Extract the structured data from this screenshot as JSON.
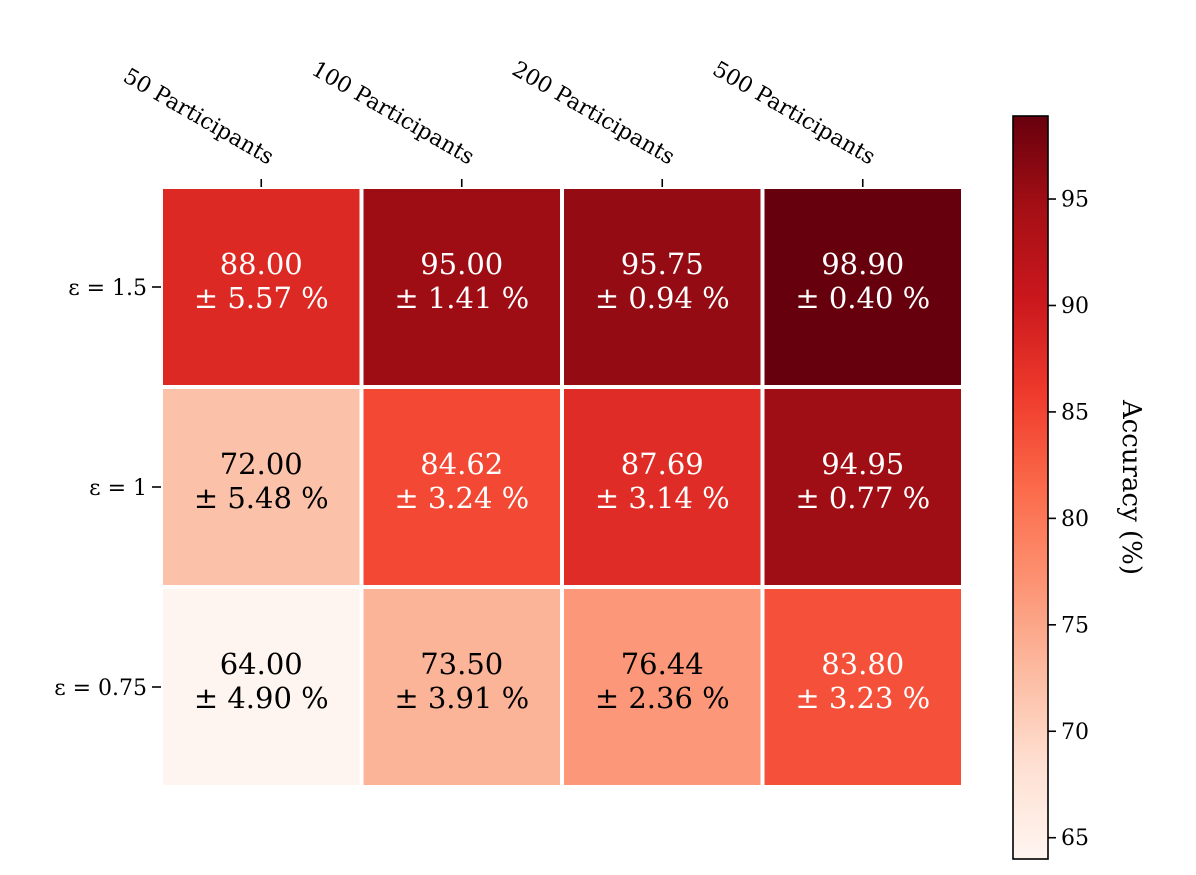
{
  "chart_data": {
    "type": "heatmap",
    "title": "",
    "columns": [
      "50 Participants",
      "100 Participants",
      "200 Participants",
      "500 Participants"
    ],
    "rows": [
      "ε = 1.5",
      "ε = 1",
      "ε = 0.75"
    ],
    "values": [
      [
        88.0,
        95.0,
        95.75,
        98.9
      ],
      [
        72.0,
        84.62,
        87.69,
        94.95
      ],
      [
        64.0,
        73.5,
        76.44,
        83.8
      ]
    ],
    "std": [
      [
        5.57,
        1.41,
        0.94,
        0.4
      ],
      [
        5.48,
        3.24,
        3.14,
        0.77
      ],
      [
        4.9,
        3.91,
        2.36,
        3.23
      ]
    ],
    "cell_labels": [
      [
        [
          "88.00",
          "± 5.57 %"
        ],
        [
          "95.00",
          "± 1.41 %"
        ],
        [
          "95.75",
          "± 0.94 %"
        ],
        [
          "98.90",
          "± 0.40 %"
        ]
      ],
      [
        [
          "72.00",
          "± 5.48 %"
        ],
        [
          "84.62",
          "± 3.24 %"
        ],
        [
          "87.69",
          "± 3.14 %"
        ],
        [
          "94.95",
          "± 0.77 %"
        ]
      ],
      [
        [
          "64.00",
          "± 4.90 %"
        ],
        [
          "73.50",
          "± 3.91 %"
        ],
        [
          "76.44",
          "± 2.36 %"
        ],
        [
          "83.80",
          "± 3.23 %"
        ]
      ]
    ],
    "colormap": "Reds",
    "colorbar": {
      "label": "Accuracy (%)",
      "range": [
        64.0,
        98.9
      ],
      "ticks": [
        65,
        70,
        75,
        80,
        85,
        90,
        95
      ],
      "tick_labels": [
        "65",
        "70",
        "75",
        "80",
        "85",
        "90",
        "95"
      ]
    },
    "gradient_stops": [
      "#fff5f0",
      "#fee0d2",
      "#fcbba1",
      "#fc9272",
      "#fb6a4a",
      "#ef3b2c",
      "#cb181d",
      "#a50f15",
      "#67000d"
    ],
    "text_colors": {
      "light": "#ffffff",
      "dark": "#000000"
    }
  }
}
